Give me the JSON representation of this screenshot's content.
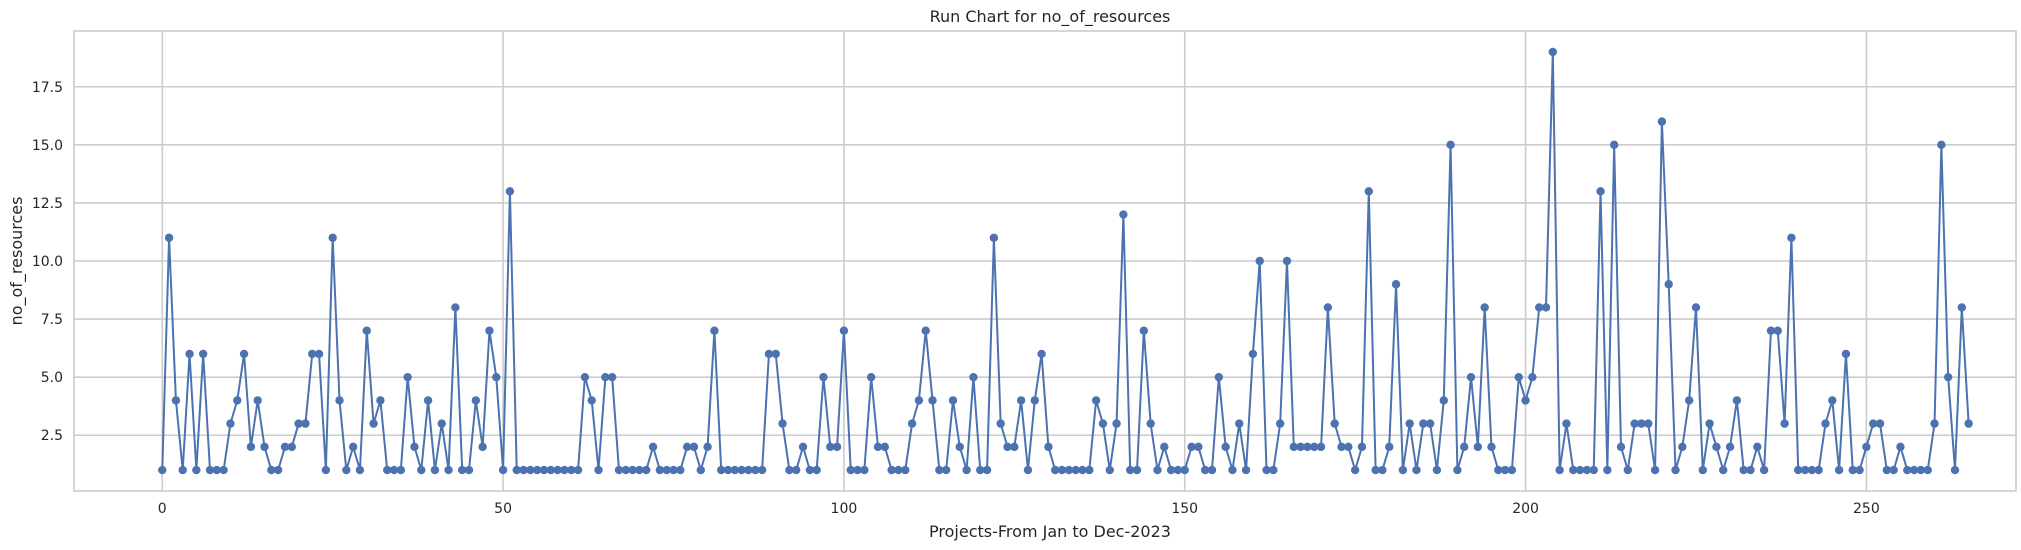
{
  "chart_data": {
    "type": "line",
    "title": "Run Chart for no_of_resources",
    "xlabel": "Projects-From Jan to Dec-2023",
    "ylabel": "no_of_resources",
    "xlim": [
      -12.95,
      271.95
    ],
    "ylim": [
      0.1,
      19.9
    ],
    "xticks": [
      0,
      50,
      100,
      150,
      200,
      250
    ],
    "xtick_labels": [
      "0",
      "50",
      "100",
      "150",
      "200",
      "250"
    ],
    "yticks": [
      2.5,
      5.0,
      7.5,
      10.0,
      12.5,
      15.0,
      17.5
    ],
    "ytick_labels": [
      "2.5",
      "5.0",
      "7.5",
      "10.0",
      "12.5",
      "15.0",
      "17.5"
    ],
    "grid": true,
    "marker": "circle",
    "color": "#4c72b0",
    "series": [
      {
        "values": [
          1,
          11,
          4,
          1,
          6,
          1,
          6,
          1,
          1,
          1,
          3,
          4,
          6,
          2,
          4,
          2,
          1,
          1,
          2,
          2,
          3,
          3,
          6,
          6,
          1,
          11,
          4,
          1,
          2,
          1,
          7,
          3,
          4,
          1,
          1,
          1,
          5,
          2,
          1,
          4,
          1,
          3,
          1,
          8,
          1,
          1,
          4,
          2,
          7,
          5,
          1,
          13,
          1,
          1,
          1,
          1,
          1,
          1,
          1,
          1,
          1,
          1,
          5,
          4,
          1,
          5,
          5,
          1,
          1,
          1,
          1,
          1,
          2,
          1,
          1,
          1,
          1,
          2,
          2,
          1,
          2,
          7,
          1,
          1,
          1,
          1,
          1,
          1,
          1,
          6,
          6,
          3,
          1,
          1,
          2,
          1,
          1,
          5,
          2,
          2,
          7,
          1,
          1,
          1,
          5,
          2,
          2,
          1,
          1,
          1,
          3,
          4,
          7,
          4,
          1,
          1,
          4,
          2,
          1,
          5,
          1,
          1,
          11,
          3,
          2,
          2,
          4,
          1,
          4,
          6,
          2,
          1,
          1,
          1,
          1,
          1,
          1,
          4,
          3,
          1,
          3,
          12,
          1,
          1,
          7,
          3,
          1,
          2,
          1,
          1,
          1,
          2,
          2,
          1,
          1,
          5,
          2,
          1,
          3,
          1,
          6,
          10,
          1,
          1,
          3,
          10,
          2,
          2,
          2,
          2,
          2,
          8,
          3,
          2,
          2,
          1,
          2,
          13,
          1,
          1,
          2,
          9,
          1,
          3,
          1,
          3,
          3,
          1,
          4,
          15,
          1,
          2,
          5,
          2,
          8,
          2,
          1,
          1,
          1,
          5,
          4,
          5,
          8,
          8,
          19,
          1,
          3,
          1,
          1,
          1,
          1,
          13,
          1,
          15,
          2,
          1,
          3,
          3,
          3,
          1,
          16,
          9,
          1,
          2,
          4,
          8,
          1,
          3,
          2,
          1,
          2,
          4,
          1,
          1,
          2,
          1,
          7,
          7,
          3,
          11,
          1,
          1,
          1,
          1,
          3,
          4,
          1,
          6,
          1,
          1,
          2,
          3,
          3,
          1,
          1,
          2,
          1,
          1,
          1,
          1,
          3,
          15,
          5,
          1,
          8,
          3
        ]
      }
    ]
  }
}
